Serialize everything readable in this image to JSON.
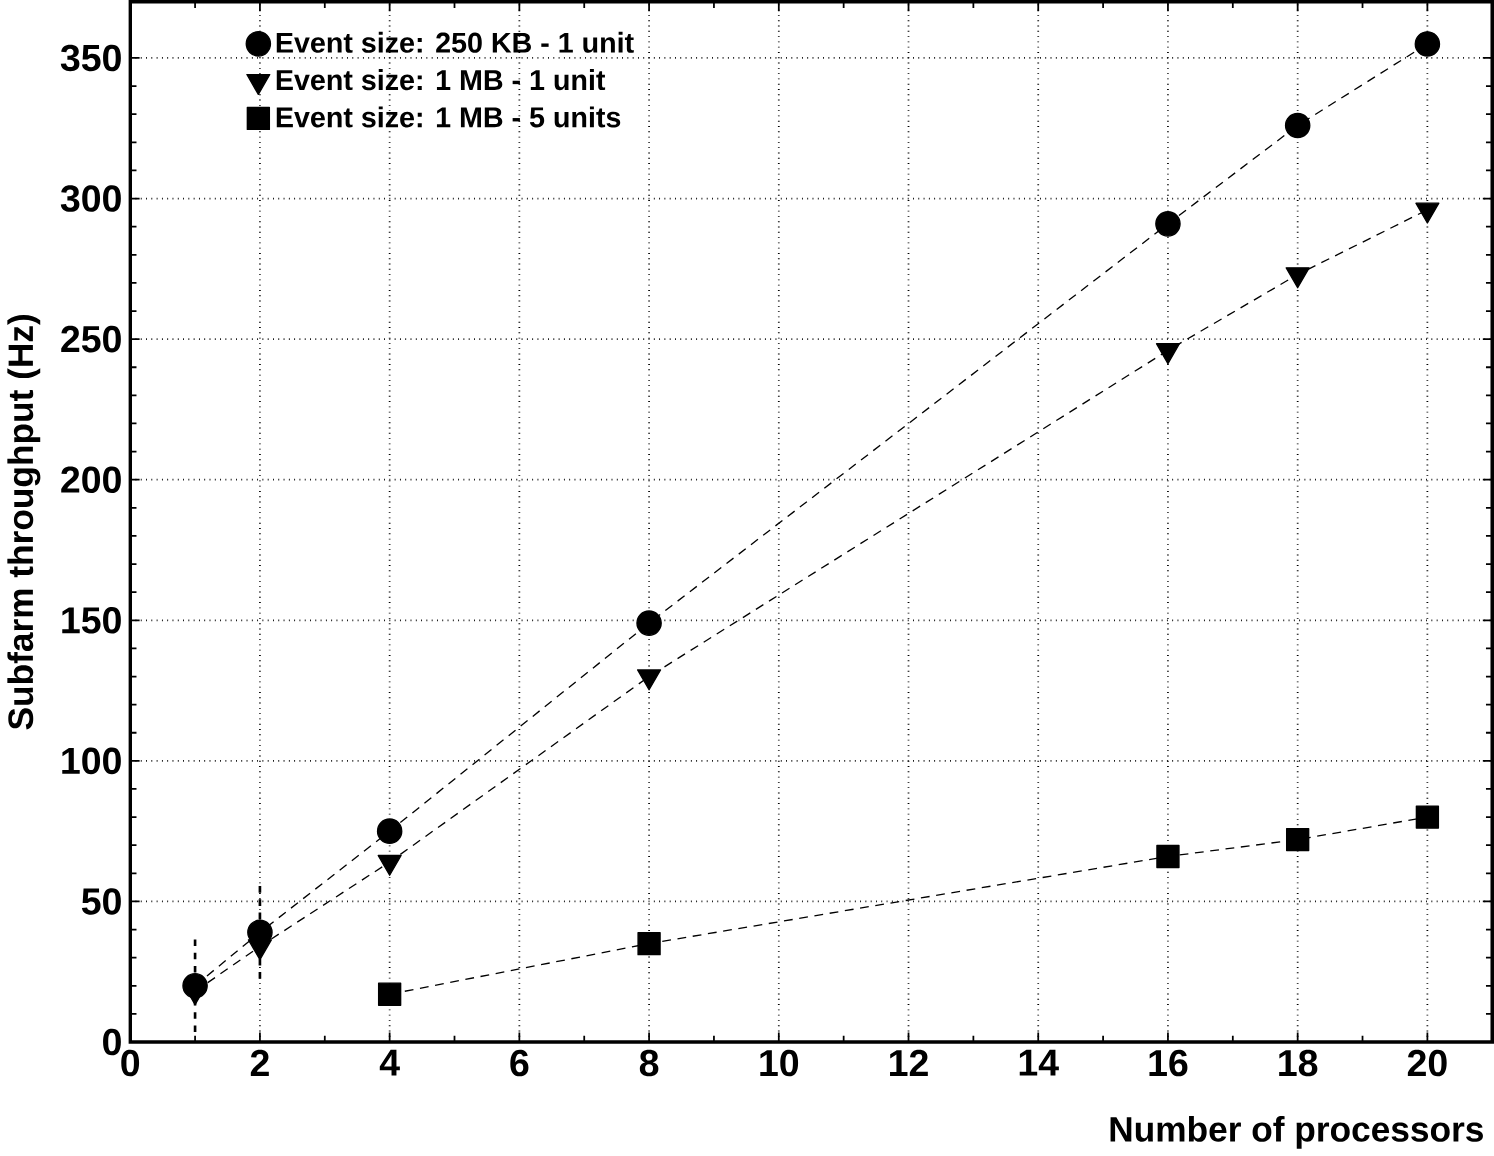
{
  "chart_data": {
    "type": "line",
    "xlabel": "Number of processors",
    "ylabel": "Subfarm throughput (Hz)",
    "xlim": [
      0,
      21
    ],
    "ylim": [
      0,
      370
    ],
    "xticks": [
      0,
      2,
      4,
      6,
      8,
      10,
      12,
      14,
      16,
      18,
      20
    ],
    "yticks": [
      0,
      50,
      100,
      150,
      200,
      250,
      300,
      350
    ],
    "grid": true,
    "legend": "top left",
    "line_style": "dashed",
    "series": [
      {
        "name": "Event size: 250 KB - 1 unit",
        "color": "#000000",
        "marker": "circle",
        "x": [
          1,
          2,
          4,
          8,
          16,
          18,
          20
        ],
        "values": [
          20,
          39,
          75,
          149,
          291,
          326,
          355
        ],
        "errors": [
          18,
          18,
          null,
          null,
          null,
          null,
          null
        ]
      },
      {
        "name": "Event size: 1 MB - 1 unit",
        "color": "#000000",
        "marker": "triangle",
        "x": [
          1,
          2,
          4,
          8,
          16,
          18,
          20
        ],
        "values": [
          18,
          34,
          64,
          130,
          246,
          273,
          296
        ]
      },
      {
        "name": "Event size: 1 MB - 5 units",
        "color": "#000000",
        "marker": "square",
        "x": [
          4,
          8,
          16,
          18,
          20
        ],
        "values": [
          17,
          35,
          66,
          72,
          80
        ]
      }
    ]
  }
}
